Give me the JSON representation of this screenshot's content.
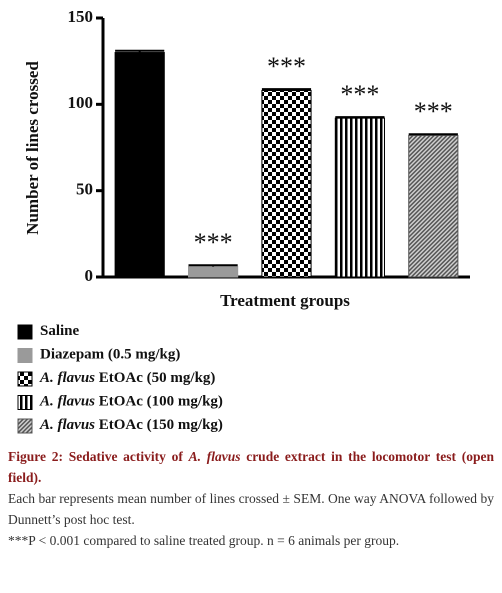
{
  "chart_data": {
    "type": "bar",
    "ylabel": "Number of lines crossed",
    "xlabel": "Treatment groups",
    "categories": [
      [
        "Saline"
      ],
      [
        "Diazepam (0.5 mg/kg)"
      ],
      [
        "A. flavus",
        " EtOAc (50 mg/kg)"
      ],
      [
        "A. flavus",
        " EtOAc (100 mg/kg)"
      ],
      [
        "A. flavus",
        " EtOAc (150 mg/kg)"
      ]
    ],
    "italic_first_part": true,
    "values": [
      130,
      6,
      108,
      92,
      82
    ],
    "errors": [
      1,
      0.8,
      0.8,
      0.6,
      0.7
    ],
    "annotations": [
      null,
      "***",
      "***",
      "***",
      "***"
    ],
    "patterns": [
      "solid",
      "solid",
      "checker",
      "vertical",
      "diagonal"
    ],
    "colors": [
      "#000000",
      "#9a9a9a",
      "#000000",
      "#000000",
      "#555555"
    ],
    "ylim": [
      0,
      150
    ],
    "yticks": [
      0,
      50,
      100,
      150
    ]
  },
  "caption": {
    "title_parts": [
      {
        "text": "Figure 2: Sedative activity of ",
        "italic": false
      },
      {
        "text": "A. flavus",
        "italic": true
      },
      {
        "text": " crude extract in the locomotor test (open field).",
        "italic": false
      }
    ],
    "paragraphs": [
      "Each bar represents mean number of lines crossed ± SEM. One way ANOVA followed by Dunnett’s post hoc test.",
      "***P < 0.001 compared to saline treated group. n = 6 animals per group."
    ]
  }
}
